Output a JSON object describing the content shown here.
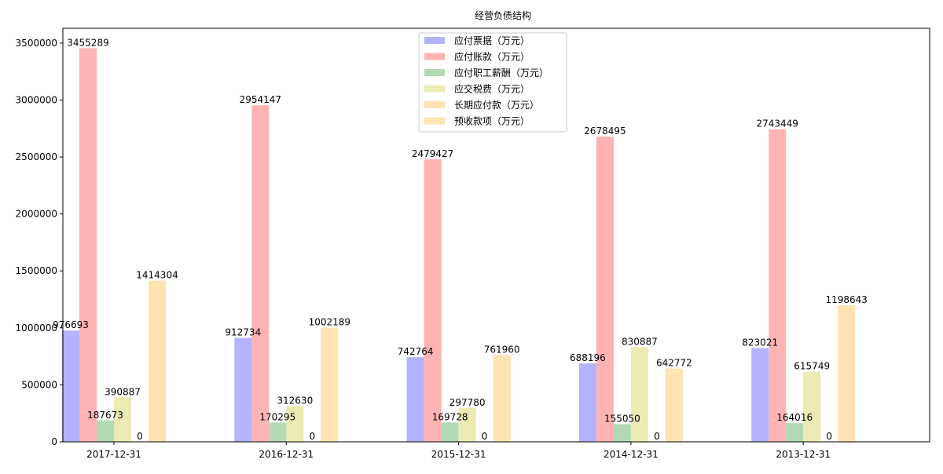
{
  "chart_data": {
    "type": "bar",
    "title": "经营负债结构",
    "xlabel": "",
    "ylabel": "",
    "categories": [
      "2017-12-31",
      "2016-12-31",
      "2015-12-31",
      "2014-12-31",
      "2013-12-31"
    ],
    "series": [
      {
        "name": "应付票据（万元）",
        "color": "#b3b3ff",
        "values": [
          976693,
          912734,
          742764,
          688196,
          823021
        ]
      },
      {
        "name": "应付账款（万元）",
        "color": "#ffb3b3",
        "values": [
          3455289,
          2954147,
          2479427,
          2678495,
          2743449
        ]
      },
      {
        "name": "应付职工薪酬（万元）",
        "color": "#b3d9b3",
        "values": [
          187673,
          170295,
          169728,
          155050,
          164016
        ]
      },
      {
        "name": "应交税费（万元）",
        "color": "#ebebb3",
        "values": [
          390887,
          312630,
          297780,
          830887,
          615749
        ]
      },
      {
        "name": "长期应付款（万元）",
        "color": "#ffe3b3",
        "values": [
          0,
          0,
          0,
          0,
          0
        ]
      },
      {
        "name": "预收款项（万元）",
        "color": "#ffe3b3",
        "values": [
          1414304,
          1002189,
          761960,
          642772,
          1198643
        ]
      }
    ],
    "ylim": [
      0,
      3630000
    ],
    "yticks": [
      0,
      500000,
      1000000,
      1500000,
      2000000,
      2500000,
      3000000,
      3500000
    ],
    "grid": false,
    "legend_position": "top-center"
  }
}
